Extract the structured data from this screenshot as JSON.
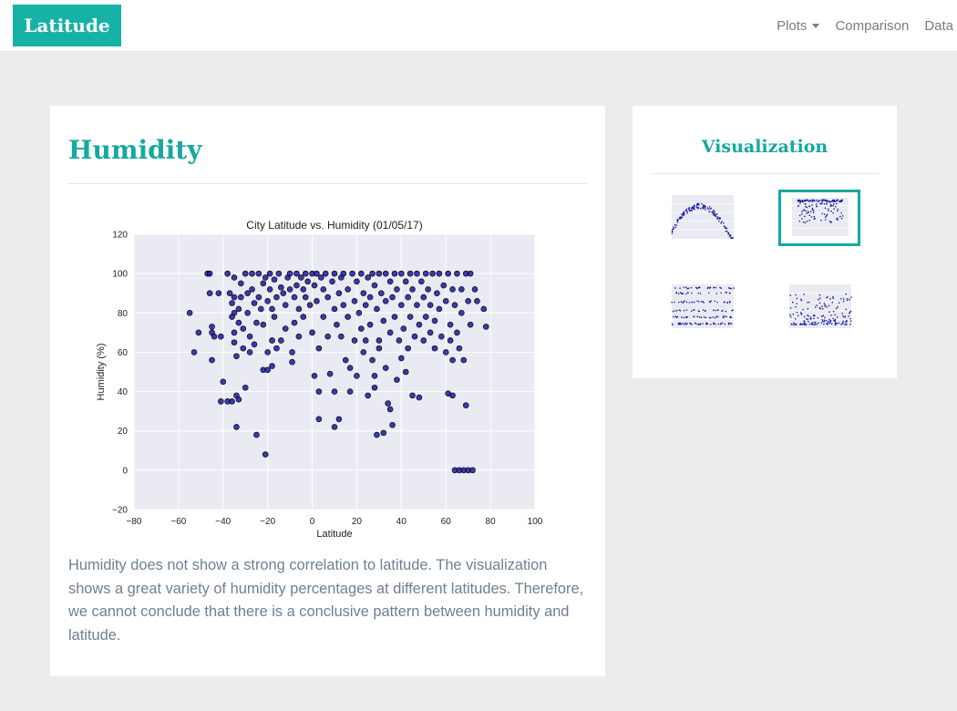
{
  "navbar": {
    "brand": "Latitude",
    "links": [
      {
        "label": "Plots",
        "has_dropdown": true
      },
      {
        "label": "Comparison"
      },
      {
        "label": "Data"
      }
    ]
  },
  "main": {
    "title": "Humidity",
    "description": "Humidity does not show a strong correlation to latitude. The visualization shows a great variety of humidity percentages at different latitudes. Therefore, we cannot conclude that there is a conclusive pattern between humidity and latitude."
  },
  "sidebar": {
    "title": "Visualization",
    "thumbnails": [
      {
        "plot": "temperature",
        "active": false
      },
      {
        "plot": "humidity",
        "active": true
      },
      {
        "plot": "cloudiness",
        "active": false
      },
      {
        "plot": "wind-speed",
        "active": false
      }
    ]
  },
  "colors": {
    "accent": "#17a89e",
    "brand_bg": "#17b2a6",
    "page_bg": "#ececec",
    "plot_bg": "#eaeaf2",
    "marker": "#1a1aa0"
  },
  "chart_data": {
    "type": "scatter",
    "title": "City Latitude vs. Humidity (01/05/17)",
    "xlabel": "Latitude",
    "ylabel": "Humidity (%)",
    "xlim": [
      -80,
      100
    ],
    "ylim": [
      -20,
      120
    ],
    "xticks": [
      -80,
      -60,
      -40,
      -20,
      0,
      20,
      40,
      60,
      80,
      100
    ],
    "yticks": [
      -20,
      0,
      20,
      40,
      60,
      80,
      100,
      120
    ],
    "grid": true,
    "points": [
      [
        -55,
        80
      ],
      [
        -53,
        60
      ],
      [
        -51,
        70
      ],
      [
        -47,
        100
      ],
      [
        -46,
        100
      ],
      [
        -46,
        90
      ],
      [
        -45,
        73
      ],
      [
        -45,
        70
      ],
      [
        -44,
        68
      ],
      [
        -45,
        56
      ],
      [
        -42,
        90
      ],
      [
        -41,
        68
      ],
      [
        -41,
        35
      ],
      [
        -40,
        45
      ],
      [
        -38,
        100
      ],
      [
        -38,
        35
      ],
      [
        -37,
        90
      ],
      [
        -36,
        85
      ],
      [
        -36,
        78
      ],
      [
        -36,
        35
      ],
      [
        -35,
        98
      ],
      [
        -35,
        88
      ],
      [
        -35,
        80
      ],
      [
        -35,
        70
      ],
      [
        -35,
        65
      ],
      [
        -34,
        58
      ],
      [
        -34,
        38
      ],
      [
        -34,
        22
      ],
      [
        -33,
        82
      ],
      [
        -33,
        75
      ],
      [
        -33,
        36
      ],
      [
        -32,
        95
      ],
      [
        -32,
        88
      ],
      [
        -31,
        72
      ],
      [
        -31,
        62
      ],
      [
        -30,
        42
      ],
      [
        -30,
        100
      ],
      [
        -29,
        90
      ],
      [
        -29,
        80
      ],
      [
        -28,
        68
      ],
      [
        -28,
        60
      ],
      [
        -27,
        100
      ],
      [
        -27,
        92
      ],
      [
        -26,
        85
      ],
      [
        -26,
        64
      ],
      [
        -25,
        18
      ],
      [
        -25,
        75
      ],
      [
        -24,
        88
      ],
      [
        -24,
        100
      ],
      [
        -23,
        82
      ],
      [
        -22,
        95
      ],
      [
        -22,
        74
      ],
      [
        -22,
        51
      ],
      [
        -21,
        8
      ],
      [
        -21,
        98
      ],
      [
        -20,
        86
      ],
      [
        -20,
        60
      ],
      [
        -20,
        51
      ],
      [
        -19,
        100
      ],
      [
        -19,
        92
      ],
      [
        -18,
        82
      ],
      [
        -18,
        66
      ],
      [
        -18,
        53
      ],
      [
        -17,
        97
      ],
      [
        -17,
        78
      ],
      [
        -16,
        88
      ],
      [
        -16,
        62
      ],
      [
        -15,
        100
      ],
      [
        -14,
        93
      ],
      [
        -14,
        66
      ],
      [
        -13,
        90
      ],
      [
        -12,
        84
      ],
      [
        -12,
        72
      ],
      [
        -11,
        98
      ],
      [
        -10,
        100
      ],
      [
        -10,
        92
      ],
      [
        -9,
        60
      ],
      [
        -9,
        55
      ],
      [
        -8,
        88
      ],
      [
        -8,
        75
      ],
      [
        -7,
        100
      ],
      [
        -7,
        94
      ],
      [
        -6,
        82
      ],
      [
        -6,
        68
      ],
      [
        -5,
        98
      ],
      [
        -4,
        92
      ],
      [
        -4,
        78
      ],
      [
        -3,
        100
      ],
      [
        -3,
        88
      ],
      [
        -2,
        96
      ],
      [
        -1,
        84
      ],
      [
        0,
        100
      ],
      [
        0,
        70
      ],
      [
        1,
        94
      ],
      [
        1,
        48
      ],
      [
        2,
        100
      ],
      [
        2,
        86
      ],
      [
        3,
        62
      ],
      [
        3,
        40
      ],
      [
        3,
        26
      ],
      [
        4,
        98
      ],
      [
        5,
        92
      ],
      [
        5,
        78
      ],
      [
        6,
        100
      ],
      [
        7,
        88
      ],
      [
        7,
        68
      ],
      [
        8,
        49
      ],
      [
        9,
        96
      ],
      [
        10,
        100
      ],
      [
        10,
        82
      ],
      [
        10,
        40
      ],
      [
        10,
        22
      ],
      [
        11,
        74
      ],
      [
        12,
        90
      ],
      [
        12,
        26
      ],
      [
        13,
        98
      ],
      [
        13,
        68
      ],
      [
        14,
        100
      ],
      [
        14,
        84
      ],
      [
        15,
        56
      ],
      [
        16,
        92
      ],
      [
        16,
        78
      ],
      [
        17,
        40
      ],
      [
        17,
        52
      ],
      [
        18,
        100
      ],
      [
        19,
        86
      ],
      [
        19,
        66
      ],
      [
        20,
        96
      ],
      [
        20,
        48
      ],
      [
        21,
        80
      ],
      [
        22,
        100
      ],
      [
        22,
        72
      ],
      [
        23,
        90
      ],
      [
        23,
        60
      ],
      [
        24,
        84
      ],
      [
        24,
        66
      ],
      [
        25,
        98
      ],
      [
        25,
        38
      ],
      [
        26,
        88
      ],
      [
        26,
        74
      ],
      [
        27,
        100
      ],
      [
        27,
        56
      ],
      [
        28,
        94
      ],
      [
        28,
        48
      ],
      [
        28,
        42
      ],
      [
        29,
        82
      ],
      [
        29,
        18
      ],
      [
        30,
        100
      ],
      [
        30,
        66
      ],
      [
        30,
        62
      ],
      [
        31,
        90
      ],
      [
        32,
        76
      ],
      [
        32,
        19
      ],
      [
        33,
        100
      ],
      [
        33,
        86
      ],
      [
        33,
        52
      ],
      [
        34,
        34
      ],
      [
        35,
        96
      ],
      [
        35,
        70
      ],
      [
        35,
        31
      ],
      [
        36,
        88
      ],
      [
        36,
        23
      ],
      [
        37,
        100
      ],
      [
        37,
        78
      ],
      [
        38,
        92
      ],
      [
        38,
        46
      ],
      [
        39,
        66
      ],
      [
        40,
        100
      ],
      [
        40,
        84
      ],
      [
        40,
        57
      ],
      [
        41,
        72
      ],
      [
        42,
        96
      ],
      [
        42,
        50
      ],
      [
        43,
        88
      ],
      [
        43,
        62
      ],
      [
        44,
        100
      ],
      [
        44,
        78
      ],
      [
        45,
        92
      ],
      [
        45,
        38
      ],
      [
        46,
        68
      ],
      [
        47,
        100
      ],
      [
        47,
        84
      ],
      [
        48,
        74
      ],
      [
        48,
        37
      ],
      [
        49,
        96
      ],
      [
        50,
        88
      ],
      [
        50,
        66
      ],
      [
        51,
        100
      ],
      [
        51,
        78
      ],
      [
        52,
        92
      ],
      [
        53,
        84
      ],
      [
        53,
        70
      ],
      [
        54,
        100
      ],
      [
        55,
        76
      ],
      [
        55,
        62
      ],
      [
        56,
        90
      ],
      [
        57,
        100
      ],
      [
        57,
        82
      ],
      [
        58,
        68
      ],
      [
        59,
        94
      ],
      [
        60,
        86
      ],
      [
        60,
        60
      ],
      [
        61,
        100
      ],
      [
        61,
        39
      ],
      [
        62,
        74
      ],
      [
        62,
        66
      ],
      [
        63,
        92
      ],
      [
        63,
        56
      ],
      [
        64,
        0
      ],
      [
        64,
        84
      ],
      [
        65,
        100
      ],
      [
        65,
        70
      ],
      [
        66,
        0
      ],
      [
        66,
        62
      ],
      [
        67,
        92
      ],
      [
        67,
        80
      ],
      [
        68,
        0
      ],
      [
        68,
        56
      ],
      [
        69,
        100
      ],
      [
        69,
        33
      ],
      [
        70,
        0
      ],
      [
        70,
        86
      ],
      [
        71,
        100
      ],
      [
        71,
        74
      ],
      [
        72,
        0
      ],
      [
        73,
        92
      ],
      [
        74,
        86
      ],
      [
        77,
        82
      ],
      [
        78,
        73
      ],
      [
        63,
        38
      ]
    ]
  }
}
